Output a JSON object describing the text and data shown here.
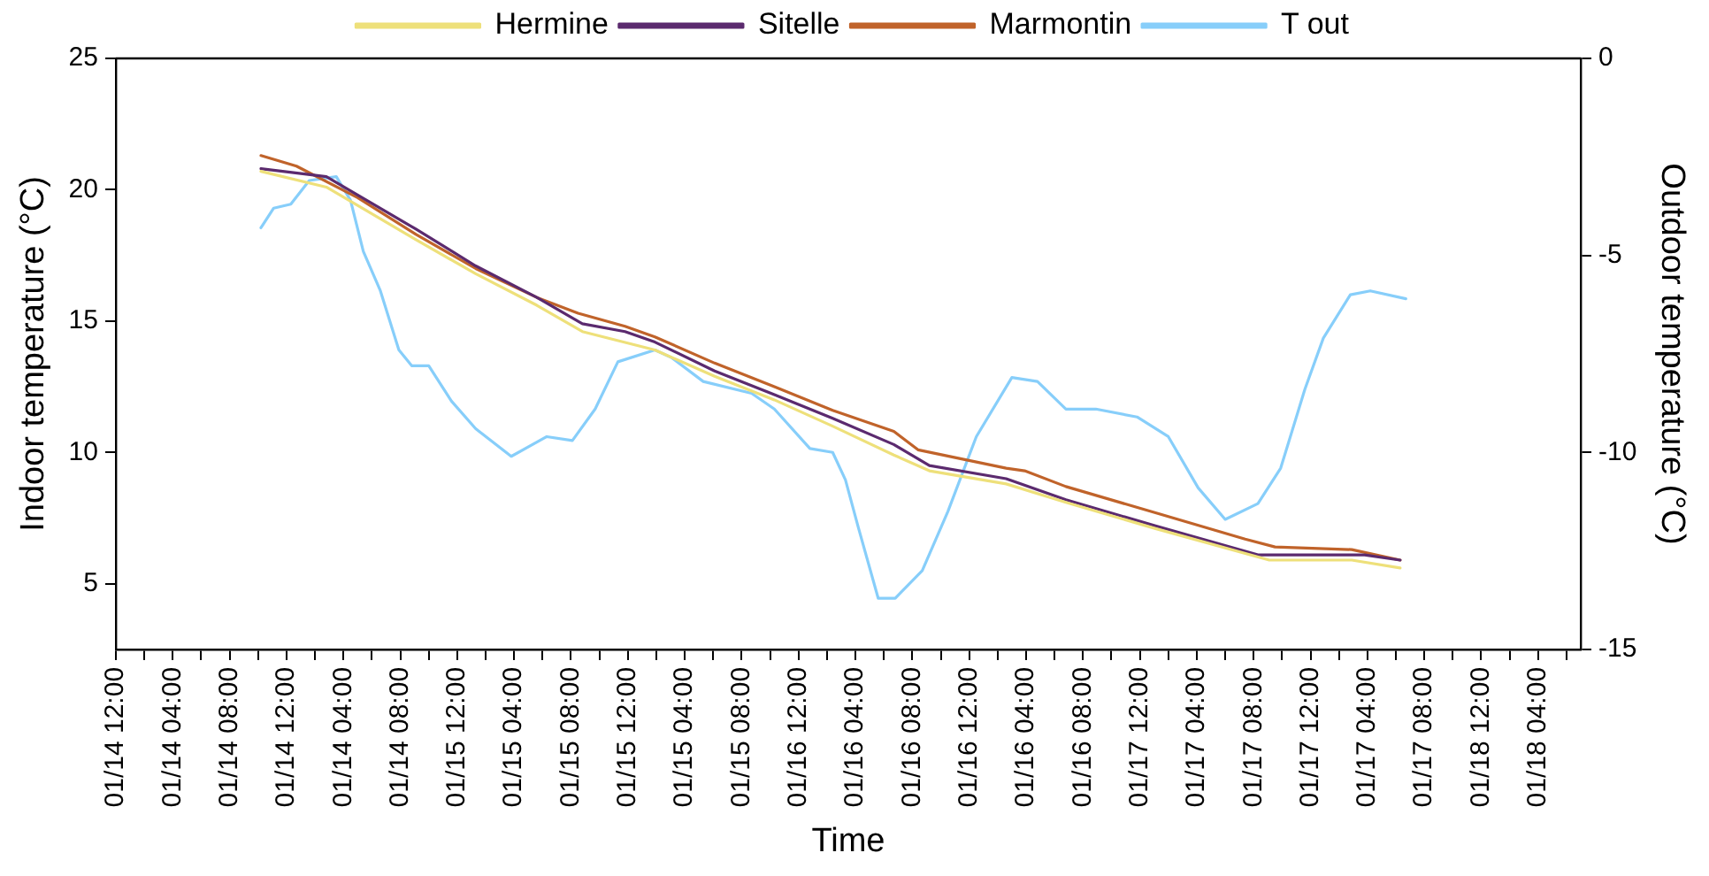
{
  "chart_data": {
    "type": "line",
    "xlabel": "Time",
    "ylabel": "Indoor temperature (°C)",
    "y2label": "Outdoor temperature (°C)",
    "xlim": [
      "--01-14T00:00",
      "--01-18T07:00"
    ],
    "ylim": [
      2.5,
      25
    ],
    "yticks": [
      5,
      10,
      15,
      20,
      25
    ],
    "y2lim": [
      -15,
      0
    ],
    "y2ticks": [
      -15,
      -10,
      -5,
      0
    ],
    "xticks": [
      {
        "value": "--01-14T00:00",
        "label": "01/14 12:00"
      },
      {
        "value": "--01-14T02:00",
        "label": null
      },
      {
        "value": "--01-14T04:00",
        "label": "01/14 04:00"
      },
      {
        "value": "--01-14T06:00",
        "label": null
      },
      {
        "value": "--01-14T08:00",
        "label": "01/14 08:00"
      },
      {
        "value": "--01-14T10:00",
        "label": null
      },
      {
        "value": "--01-14T12:00",
        "label": "01/14 12:00"
      },
      {
        "value": "--01-14T14:00",
        "label": null
      },
      {
        "value": "--01-14T16:00",
        "label": "01/14 04:00"
      },
      {
        "value": "--01-14T18:00",
        "label": null
      },
      {
        "value": "--01-14T20:00",
        "label": "01/14 08:00"
      },
      {
        "value": "--01-14T22:00",
        "label": null
      },
      {
        "value": "--01-15T00:00",
        "label": "01/15 12:00"
      },
      {
        "value": "--01-15T02:00",
        "label": null
      },
      {
        "value": "--01-15T04:00",
        "label": "01/15 04:00"
      },
      {
        "value": "--01-15T06:00",
        "label": null
      },
      {
        "value": "--01-15T08:00",
        "label": "01/15 08:00"
      },
      {
        "value": "--01-15T10:00",
        "label": null
      },
      {
        "value": "--01-15T12:00",
        "label": "01/15 12:00"
      },
      {
        "value": "--01-15T14:00",
        "label": null
      },
      {
        "value": "--01-15T16:00",
        "label": "01/15 04:00"
      },
      {
        "value": "--01-15T18:00",
        "label": null
      },
      {
        "value": "--01-15T20:00",
        "label": "01/15 08:00"
      },
      {
        "value": "--01-15T22:00",
        "label": null
      },
      {
        "value": "--01-16T00:00",
        "label": "01/16 12:00"
      },
      {
        "value": "--01-16T02:00",
        "label": null
      },
      {
        "value": "--01-16T04:00",
        "label": "01/16 04:00"
      },
      {
        "value": "--01-16T06:00",
        "label": null
      },
      {
        "value": "--01-16T08:00",
        "label": "01/16 08:00"
      },
      {
        "value": "--01-16T10:00",
        "label": null
      },
      {
        "value": "--01-16T12:00",
        "label": "01/16 12:00"
      },
      {
        "value": "--01-16T14:00",
        "label": null
      },
      {
        "value": "--01-16T16:00",
        "label": "01/16 04:00"
      },
      {
        "value": "--01-16T18:00",
        "label": null
      },
      {
        "value": "--01-16T20:00",
        "label": "01/16 08:00"
      },
      {
        "value": "--01-16T22:00",
        "label": null
      },
      {
        "value": "--01-17T00:00",
        "label": "01/17 12:00"
      },
      {
        "value": "--01-17T02:00",
        "label": null
      },
      {
        "value": "--01-17T04:00",
        "label": "01/17 04:00"
      },
      {
        "value": "--01-17T06:00",
        "label": null
      },
      {
        "value": "--01-17T08:00",
        "label": "01/17 08:00"
      },
      {
        "value": "--01-17T10:00",
        "label": null
      },
      {
        "value": "--01-17T12:00",
        "label": "01/17 12:00"
      },
      {
        "value": "--01-17T14:00",
        "label": null
      },
      {
        "value": "--01-17T16:00",
        "label": "01/17 04:00"
      },
      {
        "value": "--01-17T18:00",
        "label": null
      },
      {
        "value": "--01-17T20:00",
        "label": "01/17 08:00"
      },
      {
        "value": "--01-17T22:00",
        "label": null
      },
      {
        "value": "--01-18T00:00",
        "label": "01/18 12:00"
      },
      {
        "value": "--01-18T02:00",
        "label": null
      },
      {
        "value": "--01-18T04:00",
        "label": "01/18 04:00"
      },
      {
        "value": "--01-18T06:00",
        "label": null
      }
    ],
    "grid": false,
    "legend": "top",
    "marker": "none",
    "line_style": "solid",
    "series": [
      {
        "name": "Hermine",
        "color": "#eee07a",
        "x": [
          "--01-14T10:12",
          "--01-14T14:48",
          "--01-14T21:06",
          "--01-15T01:18",
          "--01-15T05:36",
          "--01-15T08:48",
          "--01-15T13:54",
          "--01-15T18:06",
          "--01-15T22:18",
          "--01-16T02:24",
          "--01-16T06:42",
          "--01-16T09:12",
          "--01-16T14:36",
          "--01-16T18:48",
          "--01-17T01:06",
          "--01-17T09:06",
          "--01-17T14:54",
          "--01-17T18:18"
        ],
        "values": [
          20.7,
          20.1,
          18.1,
          16.8,
          15.6,
          14.6,
          13.9,
          12.9,
          12.0,
          11.0,
          9.9,
          9.3,
          8.8,
          8.1,
          7.1,
          5.9,
          5.9,
          5.6
        ]
      },
      {
        "name": "Sitelle",
        "color": "#5b2a6e",
        "x": [
          "--01-14T10:12",
          "--01-14T14:48",
          "--01-14T17:00",
          "--01-14T21:06",
          "--01-15T01:18",
          "--01-15T05:36",
          "--01-15T08:48",
          "--01-15T11:48",
          "--01-15T13:54",
          "--01-15T18:06",
          "--01-15T22:18",
          "--01-16T02:24",
          "--01-16T06:42",
          "--01-16T09:12",
          "--01-16T14:36",
          "--01-16T18:48",
          "--01-17T01:06",
          "--01-17T08:18",
          "--01-17T14:12",
          "--01-17T15:48",
          "--01-17T18:18"
        ],
        "values": [
          20.8,
          20.5,
          19.8,
          18.5,
          17.1,
          15.9,
          14.9,
          14.6,
          14.2,
          13.1,
          12.2,
          11.3,
          10.3,
          9.5,
          9.0,
          8.2,
          7.2,
          6.1,
          6.1,
          6.1,
          5.9
        ]
      },
      {
        "name": "Marmontin",
        "color": "#c0632a",
        "x": [
          "--01-14T10:12",
          "--01-14T12:42",
          "--01-14T17:00",
          "--01-14T21:06",
          "--01-15T01:18",
          "--01-15T05:36",
          "--01-15T08:30",
          "--01-15T11:48",
          "--01-15T13:54",
          "--01-15T18:06",
          "--01-15T22:18",
          "--01-16T02:24",
          "--01-16T06:42",
          "--01-16T08:24",
          "--01-16T14:36",
          "--01-16T15:54",
          "--01-16T18:48",
          "--01-17T01:06",
          "--01-17T07:24",
          "--01-17T09:30",
          "--01-17T14:54",
          "--01-17T18:18"
        ],
        "values": [
          21.3,
          20.9,
          19.7,
          18.3,
          17.0,
          15.9,
          15.3,
          14.8,
          14.4,
          13.4,
          12.5,
          11.6,
          10.8,
          10.1,
          9.4,
          9.3,
          8.7,
          7.7,
          6.7,
          6.4,
          6.3,
          5.9
        ]
      },
      {
        "name": "T out",
        "color": "#87cefa",
        "axis": "y2",
        "x": [
          "--01-14T10:12",
          "--01-14T11:06",
          "--01-14T12:18",
          "--01-14T13:36",
          "--01-14T15:30",
          "--01-14T16:30",
          "--01-14T17:24",
          "--01-14T18:36",
          "--01-14T19:54",
          "--01-14T20:48",
          "--01-14T22:00",
          "--01-14T23:36",
          "--01-15T01:18",
          "--01-15T03:48",
          "--01-15T06:18",
          "--01-15T08:06",
          "--01-15T09:42",
          "--01-15T11:18",
          "--01-15T13:54",
          "--01-15T15:06",
          "--01-15T17:18",
          "--01-15T20:42",
          "--01-15T22:18",
          "--01-16T00:48",
          "--01-16T02:24",
          "--01-16T03:18",
          "--01-16T04:12",
          "--01-16T05:36",
          "--01-16T06:48",
          "--01-16T08:42",
          "--01-16T10:30",
          "--01-16T12:30",
          "--01-16T15:00",
          "--01-16T16:48",
          "--01-16T18:48",
          "--01-16T20:54",
          "--01-16T23:48",
          "--01-17T02:00",
          "--01-17T04:06",
          "--01-17T06:00",
          "--01-17T08:18",
          "--01-17T09:54",
          "--01-17T11:36",
          "--01-17T12:54",
          "--01-17T14:48",
          "--01-17T16:12",
          "--01-17T18:42"
        ],
        "values": [
          -4.3,
          -3.8,
          -3.7,
          -3.1,
          -3.0,
          -3.6,
          -4.9,
          -5.9,
          -7.4,
          -7.8,
          -7.8,
          -8.7,
          -9.4,
          -10.1,
          -9.6,
          -9.7,
          -8.9,
          -7.7,
          -7.4,
          -7.6,
          -8.2,
          -8.5,
          -8.9,
          -9.9,
          -10.0,
          -10.7,
          -11.9,
          -13.7,
          -13.7,
          -13.0,
          -11.5,
          -9.6,
          -8.1,
          -8.2,
          -8.9,
          -8.9,
          -9.1,
          -9.6,
          -10.9,
          -11.7,
          -11.3,
          -10.4,
          -8.4,
          -7.1,
          -6.0,
          -5.9,
          -6.1
        ]
      }
    ]
  }
}
